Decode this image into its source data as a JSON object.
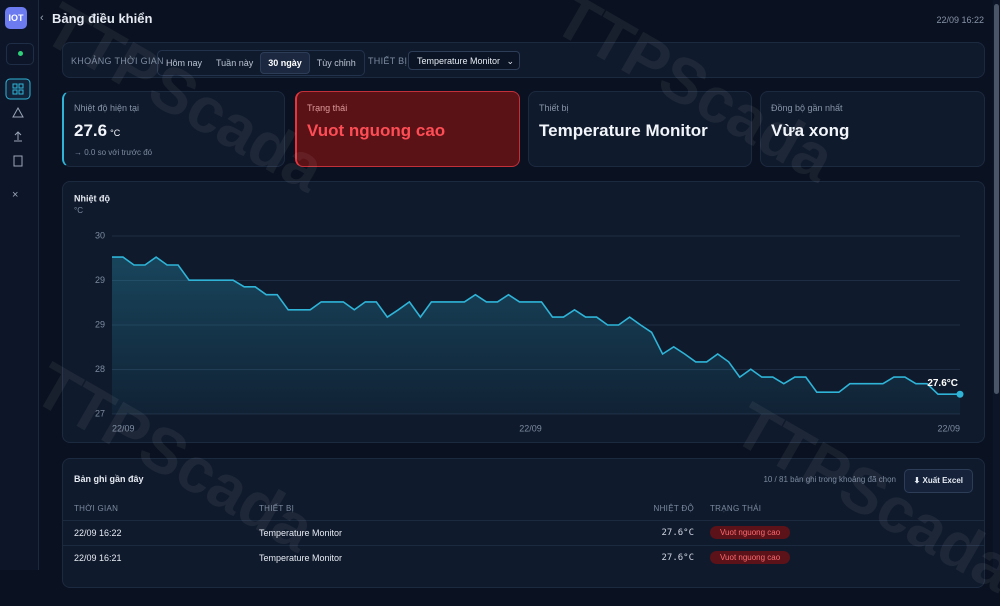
{
  "header": {
    "logo": "IOT",
    "title": "Bảng điều khiển",
    "datetime": "22/09 16:22"
  },
  "watermark": "TTPScada",
  "filters": {
    "range_label": "KHOẢNG THỜI GIAN",
    "ranges": [
      "Hôm nay",
      "Tuần này",
      "30 ngày",
      "Tùy chỉnh"
    ],
    "active": 2,
    "device_label": "THIẾT BỊ",
    "device": "Temperature Monitor"
  },
  "cards": [
    {
      "label": "Nhiệt độ hiện tại",
      "value": 27.6,
      "unit": "°C",
      "note": "→ 0.0 so với trước đó"
    },
    {
      "label": "Trạng thái",
      "value": "Vuot nguong cao"
    },
    {
      "label": "Thiết bị",
      "value": "Temperature Monitor"
    },
    {
      "label": "Đồng bộ gần nhất",
      "value": "Vừa xong"
    }
  ],
  "chart_data": {
    "type": "line",
    "title": "Nhiệt độ",
    "y_label": "°C",
    "end_label": "27.6°C",
    "color": "#2fb4d8",
    "grid": true,
    "ylim": [
      27.3,
      30
    ],
    "yticks": [
      {
        "value": 27.3,
        "label": "27"
      },
      {
        "value": 27.975,
        "label": "28"
      },
      {
        "value": 28.65,
        "label": "29"
      },
      {
        "value": 29.325,
        "label": "29"
      },
      {
        "value": 30,
        "label": "30"
      }
    ],
    "categories": [
      "22/09",
      null,
      null,
      null,
      null,
      null,
      null,
      null,
      null,
      null,
      null,
      null,
      null,
      null,
      null,
      null,
      null,
      null,
      null,
      null,
      null,
      null,
      null,
      null,
      null,
      null,
      null,
      null,
      null,
      null,
      null,
      null,
      null,
      null,
      null,
      null,
      null,
      null,
      "22/09",
      null,
      null,
      null,
      null,
      null,
      null,
      null,
      null,
      null,
      null,
      null,
      null,
      null,
      null,
      null,
      null,
      null,
      null,
      null,
      null,
      null,
      null,
      null,
      null,
      null,
      null,
      null,
      null,
      null,
      null,
      null,
      null,
      null,
      null,
      null,
      null,
      null,
      null,
      "22/09"
    ],
    "values": [
      29.68,
      29.68,
      29.56,
      29.56,
      29.68,
      29.56,
      29.56,
      29.33,
      29.33,
      29.33,
      29.33,
      29.33,
      29.23,
      29.23,
      29.11,
      29.11,
      28.88,
      28.88,
      28.88,
      29.0,
      29.0,
      29.0,
      28.88,
      29.0,
      29.0,
      28.77,
      28.88,
      29.0,
      28.77,
      29.0,
      29.0,
      29.0,
      29.0,
      29.11,
      29.0,
      29.0,
      29.11,
      29.0,
      29.0,
      29.0,
      28.77,
      28.77,
      28.88,
      28.77,
      28.77,
      28.65,
      28.65,
      28.77,
      28.65,
      28.54,
      28.21,
      28.32,
      28.21,
      28.09,
      28.09,
      28.21,
      28.09,
      27.86,
      27.98,
      27.86,
      27.86,
      27.76,
      27.86,
      27.86,
      27.63,
      27.63,
      27.63,
      27.76,
      27.76,
      27.76,
      27.76,
      27.86,
      27.86,
      27.76,
      27.76,
      27.6,
      27.6,
      27.6
    ]
  },
  "table": {
    "title": "Bản ghi gần đây",
    "summary": "10 / 81 bản ghi trong khoảng đã chọn",
    "export": "⬇ Xuất Excel",
    "columns": [
      "THỜI GIAN",
      "THIẾT BỊ",
      "NHIỆT ĐỘ",
      "TRẠNG THÁI"
    ],
    "rows": [
      [
        "22/09 16:22",
        "Temperature Monitor",
        "27.6°C",
        "Vuot nguong cao"
      ],
      [
        "22/09 16:21",
        "Temperature Monitor",
        "27.6°C",
        "Vuot nguong cao"
      ]
    ]
  }
}
